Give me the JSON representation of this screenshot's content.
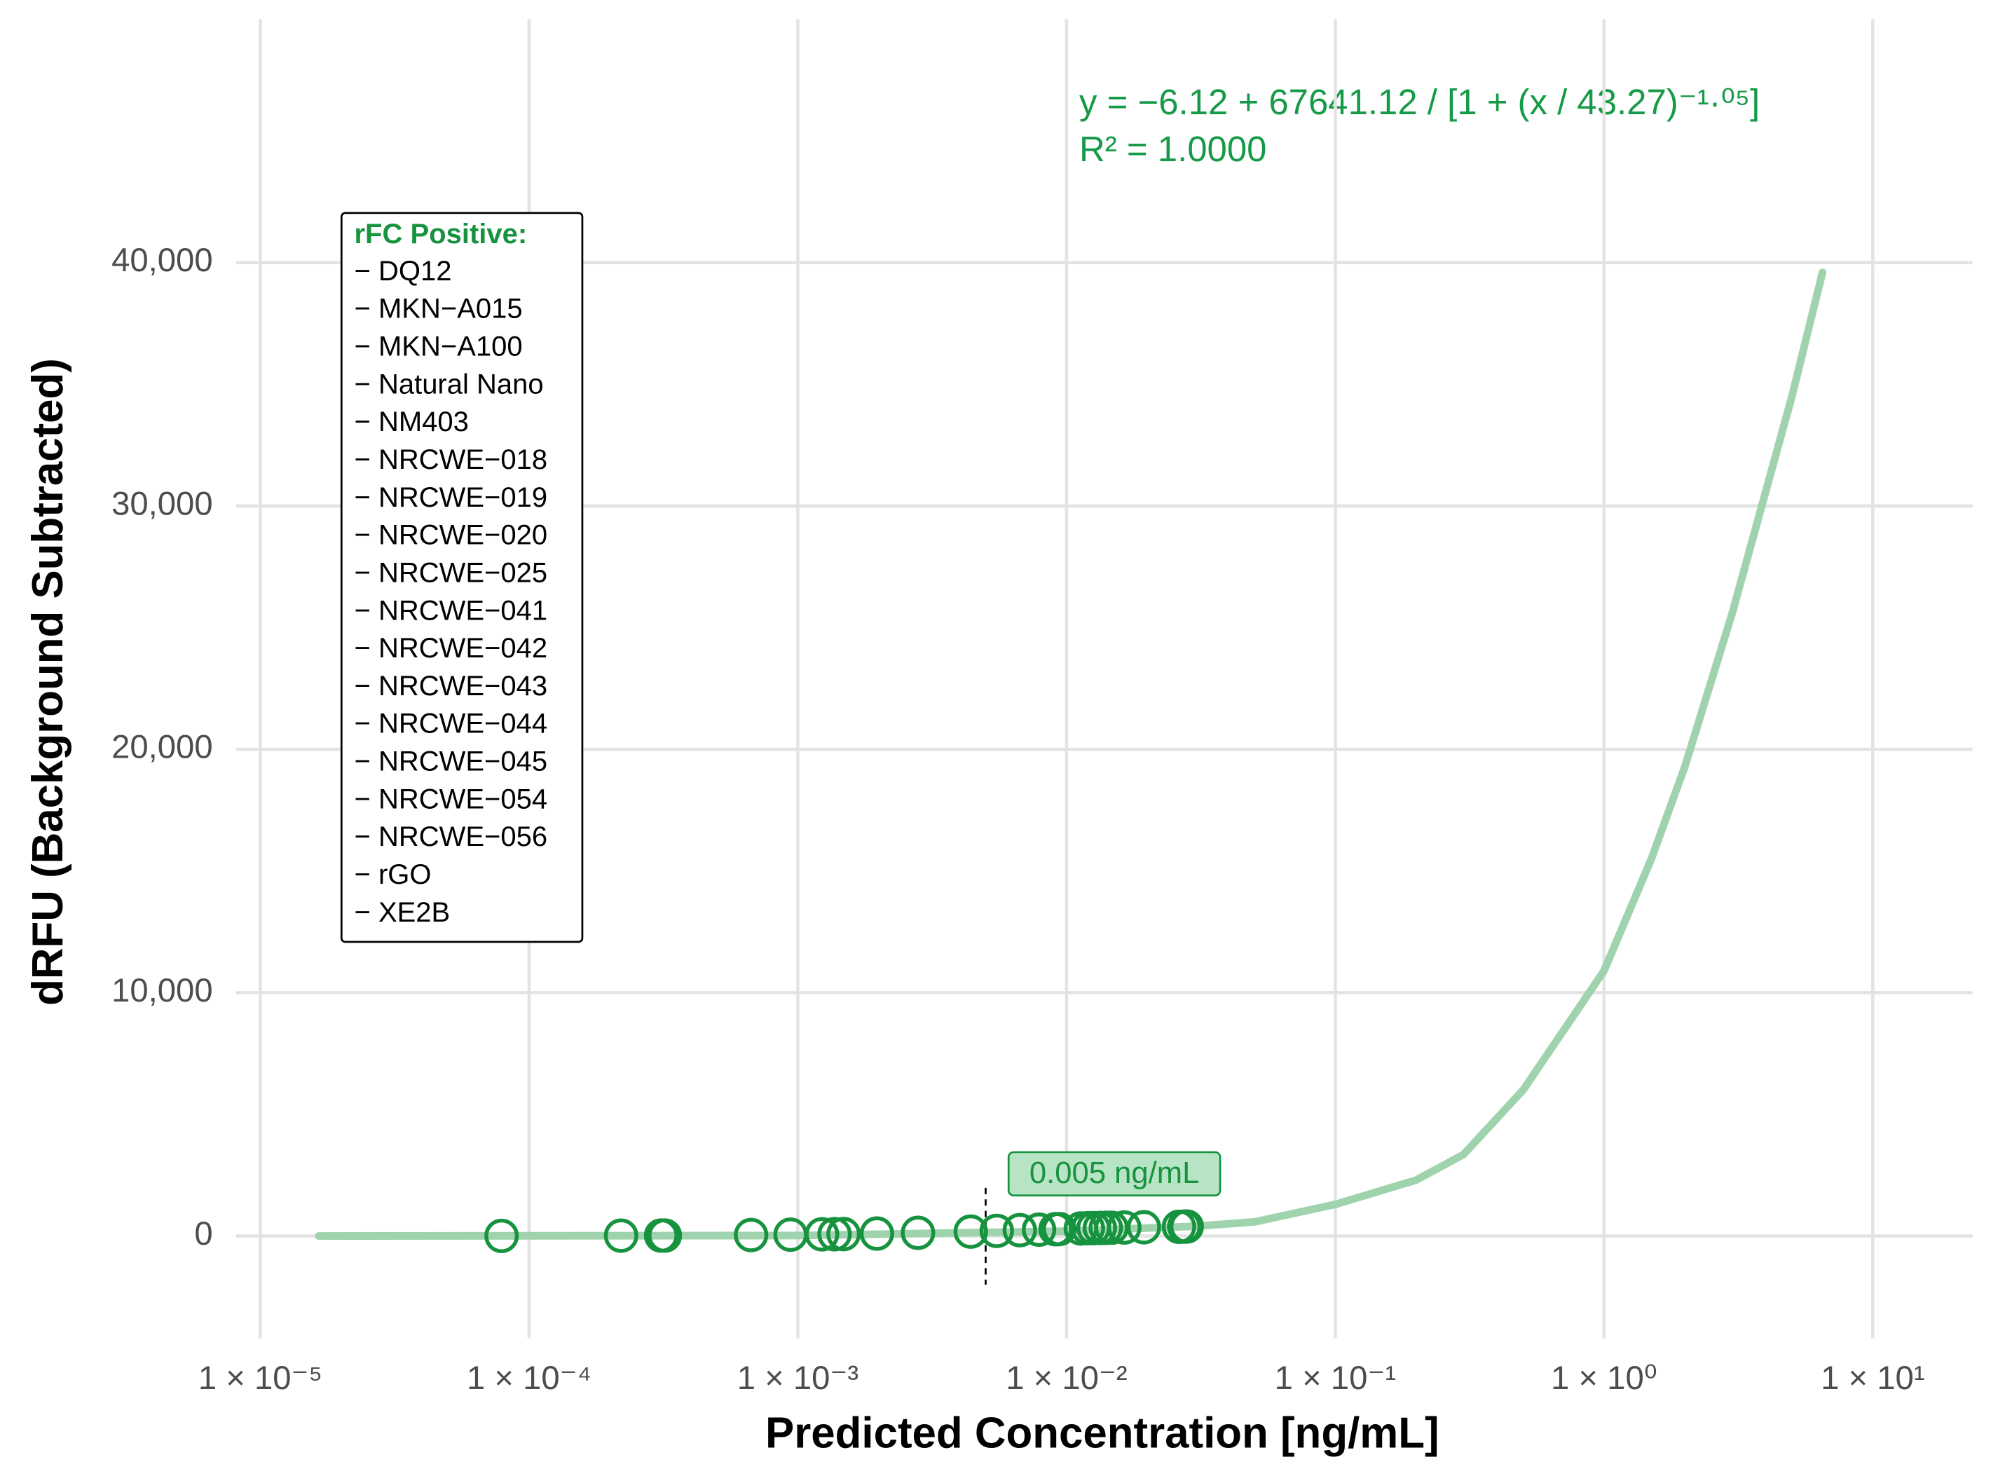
{
  "chart_data": {
    "type": "scatter",
    "x_label": "Predicted Concentration [ng/mL]",
    "y_label": "dRFU (Background Subtracted)",
    "log_x": true,
    "grid": true,
    "xlim": [
      8.1e-06,
      23.5
    ],
    "ylim": [
      -4200,
      50000
    ],
    "xticks": [
      {
        "value": 1e-05,
        "label": "1 × 10⁻⁵"
      },
      {
        "value": 0.0001,
        "label": "1 × 10⁻⁴"
      },
      {
        "value": 0.001,
        "label": "1 × 10⁻³"
      },
      {
        "value": 0.01,
        "label": "1 × 10⁻²"
      },
      {
        "value": 0.1,
        "label": "1 × 10⁻¹"
      },
      {
        "value": 1,
        "label": "1 × 10⁰"
      },
      {
        "value": 10,
        "label": "1 × 10¹"
      }
    ],
    "yticks": [
      0,
      {
        "value": 10000,
        "label": "10,000"
      },
      {
        "value": 20000,
        "label": "20,000"
      },
      {
        "value": 30000,
        "label": "30,000"
      },
      {
        "value": 40000,
        "label": "40,000"
      }
    ],
    "points": {
      "color": "#17933f",
      "x": [
        7.9e-05,
        0.00022,
        0.00031,
        0.00032,
        0.00067,
        0.00094,
        0.00123,
        0.00137,
        0.00148,
        0.00197,
        0.0028,
        0.0044,
        0.0055,
        0.0067,
        0.0079,
        0.0091,
        0.0094,
        0.0113,
        0.012,
        0.0126,
        0.0133,
        0.014,
        0.0147,
        0.0164,
        0.0194,
        0.0262,
        0.0274,
        0.028
      ],
      "values": [
        5,
        15,
        20,
        20,
        40,
        55,
        70,
        75,
        80,
        100,
        130,
        180,
        210,
        240,
        260,
        280,
        285,
        310,
        320,
        325,
        330,
        335,
        340,
        350,
        360,
        380,
        385,
        390
      ]
    },
    "curve": {
      "color": "#9fd3ad",
      "x": [
        1.65e-05,
        0.001,
        0.01,
        0.03,
        0.05,
        0.1,
        0.2,
        0.3,
        0.5,
        1,
        1.5,
        2,
        3,
        5,
        6.5
      ],
      "values": [
        0,
        20,
        200,
        400,
        580,
        1300,
        2300,
        3350,
        6000,
        10900,
        15500,
        19300,
        25600,
        34500,
        39600
      ]
    },
    "threshold": {
      "value": 0.005,
      "label": "0.005 ng/mL"
    },
    "equation": "y = −6.12 + 67641.12 / [1 + (x / 43.27)⁻¹·⁰⁵]",
    "r_squared": "R² = 1.0000",
    "legend": {
      "title": "rFC Positive:",
      "items": [
        "− DQ12",
        "− MKN−A015",
        "− MKN−A100",
        "− Natural Nano",
        "− NM403",
        "− NRCWE−018",
        "− NRCWE−019",
        "− NRCWE−020",
        "− NRCWE−025",
        "− NRCWE−041",
        "− NRCWE−042",
        "− NRCWE−043",
        "− NRCWE−044",
        "− NRCWE−045",
        "− NRCWE−054",
        "− NRCWE−056",
        "− rGO",
        "− XE2B"
      ]
    }
  }
}
